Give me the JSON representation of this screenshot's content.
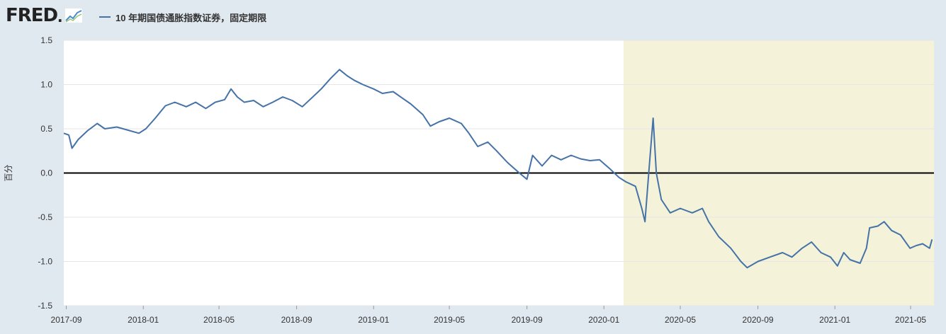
{
  "header": {
    "logo_text": "FRED",
    "legend_label": "10 年期国债通胀指数证券，固定期限"
  },
  "colors": {
    "series": "#4572a7",
    "recession": "#f4f3d9",
    "background": "#e1e9f0",
    "plot": "#ffffff",
    "zero_line": "#000000"
  },
  "chart_data": {
    "type": "line",
    "title": "",
    "xlabel": "",
    "ylabel": "百分",
    "ylim": [
      -1.5,
      1.5
    ],
    "yticks": [
      "1.5",
      "1.0",
      "0.5",
      "0.0",
      "-0.5",
      "-1.0",
      "-1.5"
    ],
    "xlim": [
      "2017-08-28",
      "2021-06-07"
    ],
    "xticks": [
      {
        "label": "2017-09",
        "date": "2017-09-01"
      },
      {
        "label": "2018-01",
        "date": "2018-01-01"
      },
      {
        "label": "2018-05",
        "date": "2018-05-01"
      },
      {
        "label": "2018-09",
        "date": "2018-09-01"
      },
      {
        "label": "2019-01",
        "date": "2019-01-01"
      },
      {
        "label": "2019-05",
        "date": "2019-05-01"
      },
      {
        "label": "2019-09",
        "date": "2019-09-01"
      },
      {
        "label": "2020-01",
        "date": "2020-01-01"
      },
      {
        "label": "2020-05",
        "date": "2020-05-01"
      },
      {
        "label": "2020-09",
        "date": "2020-09-01"
      },
      {
        "label": "2021-01",
        "date": "2021-01-01"
      },
      {
        "label": "2021-05",
        "date": "2021-05-01"
      }
    ],
    "recession": {
      "start": "2020-02-01",
      "end": "2021-06-07"
    },
    "series": [
      {
        "points": [
          [
            "2017-08-28",
            0.45
          ],
          [
            "2017-09-05",
            0.43
          ],
          [
            "2017-09-10",
            0.28
          ],
          [
            "2017-09-20",
            0.38
          ],
          [
            "2017-10-05",
            0.48
          ],
          [
            "2017-10-20",
            0.56
          ],
          [
            "2017-11-01",
            0.5
          ],
          [
            "2017-11-20",
            0.52
          ],
          [
            "2017-12-10",
            0.48
          ],
          [
            "2017-12-25",
            0.45
          ],
          [
            "2018-01-05",
            0.5
          ],
          [
            "2018-01-20",
            0.62
          ],
          [
            "2018-02-05",
            0.76
          ],
          [
            "2018-02-20",
            0.8
          ],
          [
            "2018-03-10",
            0.75
          ],
          [
            "2018-03-25",
            0.8
          ],
          [
            "2018-04-10",
            0.73
          ],
          [
            "2018-04-25",
            0.8
          ],
          [
            "2018-05-10",
            0.83
          ],
          [
            "2018-05-20",
            0.95
          ],
          [
            "2018-05-30",
            0.86
          ],
          [
            "2018-06-10",
            0.8
          ],
          [
            "2018-06-25",
            0.82
          ],
          [
            "2018-07-10",
            0.75
          ],
          [
            "2018-07-25",
            0.8
          ],
          [
            "2018-08-10",
            0.86
          ],
          [
            "2018-08-25",
            0.82
          ],
          [
            "2018-09-10",
            0.75
          ],
          [
            "2018-09-25",
            0.85
          ],
          [
            "2018-10-10",
            0.95
          ],
          [
            "2018-10-25",
            1.07
          ],
          [
            "2018-11-08",
            1.17
          ],
          [
            "2018-11-20",
            1.1
          ],
          [
            "2018-12-01",
            1.05
          ],
          [
            "2018-12-15",
            1.0
          ],
          [
            "2019-01-01",
            0.95
          ],
          [
            "2019-01-15",
            0.9
          ],
          [
            "2019-02-01",
            0.92
          ],
          [
            "2019-02-15",
            0.85
          ],
          [
            "2019-03-01",
            0.78
          ],
          [
            "2019-03-20",
            0.66
          ],
          [
            "2019-04-01",
            0.53
          ],
          [
            "2019-04-15",
            0.58
          ],
          [
            "2019-05-01",
            0.62
          ],
          [
            "2019-05-20",
            0.56
          ],
          [
            "2019-06-01",
            0.45
          ],
          [
            "2019-06-15",
            0.3
          ],
          [
            "2019-07-01",
            0.35
          ],
          [
            "2019-07-15",
            0.25
          ],
          [
            "2019-08-01",
            0.12
          ],
          [
            "2019-08-20",
            0.0
          ],
          [
            "2019-09-01",
            -0.07
          ],
          [
            "2019-09-10",
            0.2
          ],
          [
            "2019-09-25",
            0.08
          ],
          [
            "2019-10-10",
            0.2
          ],
          [
            "2019-10-25",
            0.15
          ],
          [
            "2019-11-10",
            0.2
          ],
          [
            "2019-11-25",
            0.16
          ],
          [
            "2019-12-10",
            0.14
          ],
          [
            "2019-12-25",
            0.15
          ],
          [
            "2020-01-10",
            0.05
          ],
          [
            "2020-01-25",
            -0.05
          ],
          [
            "2020-02-05",
            -0.1
          ],
          [
            "2020-02-20",
            -0.15
          ],
          [
            "2020-03-01",
            -0.4
          ],
          [
            "2020-03-06",
            -0.55
          ],
          [
            "2020-03-12",
            0.0
          ],
          [
            "2020-03-19",
            0.62
          ],
          [
            "2020-03-24",
            0.0
          ],
          [
            "2020-04-01",
            -0.3
          ],
          [
            "2020-04-15",
            -0.45
          ],
          [
            "2020-05-01",
            -0.4
          ],
          [
            "2020-05-20",
            -0.45
          ],
          [
            "2020-06-05",
            -0.4
          ],
          [
            "2020-06-15",
            -0.55
          ],
          [
            "2020-07-01",
            -0.72
          ],
          [
            "2020-07-20",
            -0.85
          ],
          [
            "2020-08-05",
            -1.0
          ],
          [
            "2020-08-15",
            -1.07
          ],
          [
            "2020-09-01",
            -1.0
          ],
          [
            "2020-09-20",
            -0.95
          ],
          [
            "2020-10-10",
            -0.9
          ],
          [
            "2020-10-25",
            -0.95
          ],
          [
            "2020-11-10",
            -0.85
          ],
          [
            "2020-11-25",
            -0.78
          ],
          [
            "2020-12-10",
            -0.9
          ],
          [
            "2020-12-25",
            -0.95
          ],
          [
            "2021-01-05",
            -1.05
          ],
          [
            "2021-01-15",
            -0.9
          ],
          [
            "2021-01-25",
            -0.98
          ],
          [
            "2021-02-10",
            -1.02
          ],
          [
            "2021-02-20",
            -0.85
          ],
          [
            "2021-02-25",
            -0.62
          ],
          [
            "2021-03-10",
            -0.6
          ],
          [
            "2021-03-20",
            -0.55
          ],
          [
            "2021-04-01",
            -0.65
          ],
          [
            "2021-04-15",
            -0.7
          ],
          [
            "2021-04-30",
            -0.85
          ],
          [
            "2021-05-10",
            -0.82
          ],
          [
            "2021-05-20",
            -0.8
          ],
          [
            "2021-05-31",
            -0.85
          ],
          [
            "2021-06-04",
            -0.75
          ]
        ]
      }
    ]
  }
}
